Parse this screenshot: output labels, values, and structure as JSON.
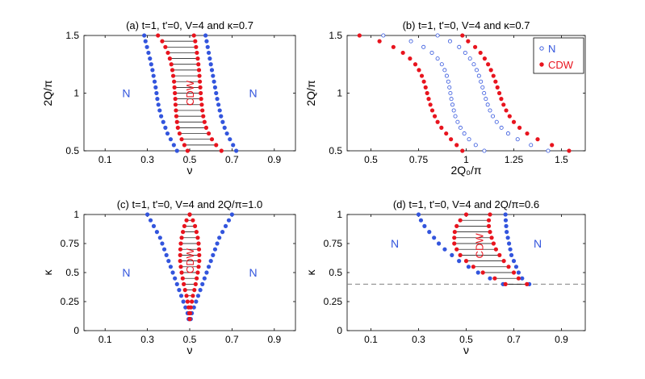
{
  "colors": {
    "n": "#3355dd",
    "cdw": "#e8141e",
    "tie": "#000000",
    "dash": "#808080"
  },
  "chart_data": [
    {
      "id": "a",
      "type": "scatter",
      "title": "(a) t=1, t'=0, V=4 and κ=0.7",
      "xlabel": "ν",
      "ylabel": "2Q/π",
      "xlim": [
        0,
        1
      ],
      "ylim": [
        0.5,
        1.5
      ],
      "xticks": [
        0.1,
        0.3,
        0.5,
        0.7,
        0.9
      ],
      "xtick_labels": [
        "0.1",
        "0.3",
        "0.5",
        "0.7",
        "0.9"
      ],
      "yticks": [
        0.5,
        1,
        1.5
      ],
      "ytick_labels": [
        "0.5",
        "1",
        "1.5"
      ],
      "annotations": [
        {
          "text": "N",
          "x": 0.2,
          "y": 1.0,
          "color": "n",
          "rotate": 0
        },
        {
          "text": "N",
          "x": 0.8,
          "y": 1.0,
          "color": "n",
          "rotate": 0
        },
        {
          "text": "CDW",
          "x": 0.5,
          "y": 1.0,
          "color": "cdw",
          "rotate": -90
        }
      ],
      "pairs": {
        "y": [
          0.5,
          0.55,
          0.6,
          0.65,
          0.7,
          0.75,
          0.8,
          0.85,
          0.9,
          0.95,
          1.0,
          1.05,
          1.1,
          1.15,
          1.2,
          1.25,
          1.3,
          1.35,
          1.4,
          1.45,
          1.5
        ],
        "n_left": [
          0.44,
          0.425,
          0.41,
          0.395,
          0.385,
          0.375,
          0.365,
          0.358,
          0.352,
          0.347,
          0.343,
          0.339,
          0.334,
          0.329,
          0.324,
          0.318,
          0.312,
          0.305,
          0.298,
          0.291,
          0.285
        ],
        "cdw_left": [
          0.49,
          0.475,
          0.462,
          0.452,
          0.444,
          0.44,
          0.437,
          0.435,
          0.433,
          0.432,
          0.43,
          0.428,
          0.426,
          0.422,
          0.418,
          0.413,
          0.406,
          0.397,
          0.385,
          0.37,
          0.35
        ],
        "cdw_right": [
          0.65,
          0.625,
          0.605,
          0.59,
          0.578,
          0.57,
          0.564,
          0.56,
          0.557,
          0.554,
          0.552,
          0.55,
          0.548,
          0.546,
          0.544,
          0.541,
          0.538,
          0.534,
          0.53,
          0.526,
          0.52
        ],
        "n_right": [
          0.72,
          0.705,
          0.69,
          0.676,
          0.665,
          0.656,
          0.648,
          0.642,
          0.636,
          0.63,
          0.625,
          0.62,
          0.615,
          0.61,
          0.605,
          0.6,
          0.595,
          0.59,
          0.585,
          0.58,
          0.575
        ]
      }
    },
    {
      "id": "b",
      "type": "scatter",
      "title": "(b) t=1, t'=0, V=4 and κ=0.7",
      "xlabel": "2Q₀/π",
      "ylabel": "2Q/π",
      "xlim": [
        0.375,
        1.625
      ],
      "ylim": [
        0.5,
        1.5
      ],
      "xticks": [
        0.5,
        0.75,
        1,
        1.25,
        1.5
      ],
      "xtick_labels": [
        "0.5",
        "0.75",
        "1",
        "1.25",
        "1.5"
      ],
      "yticks": [
        0.5,
        1,
        1.5
      ],
      "ytick_labels": [
        "0.5",
        "1",
        "1.5"
      ],
      "legend": [
        {
          "label": "N",
          "marker": "open",
          "color": "n"
        },
        {
          "label": "CDW",
          "marker": "filled",
          "color": "cdw"
        }
      ],
      "legend_position": "top-right",
      "series": [
        {
          "name": "CDW (left)",
          "style": "filled",
          "color": "cdw",
          "y": [
            0.5,
            0.55,
            0.6,
            0.65,
            0.7,
            0.75,
            0.8,
            0.85,
            0.9,
            0.95,
            1.0,
            1.05,
            1.1,
            1.15,
            1.2,
            1.25,
            1.3,
            1.35,
            1.4,
            1.45,
            1.5
          ],
          "x": [
            0.98,
            0.95,
            0.92,
            0.895,
            0.87,
            0.85,
            0.835,
            0.822,
            0.812,
            0.803,
            0.795,
            0.787,
            0.778,
            0.767,
            0.752,
            0.733,
            0.705,
            0.668,
            0.618,
            0.545,
            0.44
          ]
        },
        {
          "name": "N (left)",
          "style": "open",
          "color": "n",
          "y": [
            0.5,
            0.55,
            0.6,
            0.65,
            0.7,
            0.75,
            0.8,
            0.85,
            0.9,
            0.95,
            1.0,
            1.05,
            1.1,
            1.15,
            1.2,
            1.25,
            1.3,
            1.35,
            1.4,
            1.45,
            1.5
          ],
          "x": [
            1.095,
            1.05,
            1.015,
            0.99,
            0.97,
            0.955,
            0.943,
            0.935,
            0.928,
            0.922,
            0.917,
            0.912,
            0.906,
            0.898,
            0.887,
            0.872,
            0.85,
            0.82,
            0.776,
            0.71,
            0.565
          ]
        },
        {
          "name": "N (right)",
          "style": "open",
          "color": "n",
          "y": [
            0.5,
            0.55,
            0.6,
            0.65,
            0.7,
            0.75,
            0.8,
            0.85,
            0.9,
            0.95,
            1.0,
            1.05,
            1.1,
            1.15,
            1.2,
            1.25,
            1.3,
            1.35,
            1.4,
            1.45,
            1.5
          ],
          "x": [
            1.43,
            1.34,
            1.27,
            1.22,
            1.185,
            1.16,
            1.14,
            1.125,
            1.113,
            1.103,
            1.094,
            1.086,
            1.077,
            1.067,
            1.055,
            1.04,
            1.02,
            0.995,
            0.963,
            0.915,
            0.85
          ]
        },
        {
          "name": "CDW (right)",
          "style": "filled",
          "color": "cdw",
          "y": [
            0.5,
            0.55,
            0.6,
            0.65,
            0.7,
            0.75,
            0.8,
            0.85,
            0.9,
            0.95,
            1.0,
            1.05,
            1.1,
            1.15,
            1.2,
            1.25,
            1.3,
            1.35,
            1.4,
            1.45,
            1.5
          ],
          "x": [
            1.54,
            1.45,
            1.375,
            1.32,
            1.28,
            1.25,
            1.228,
            1.21,
            1.196,
            1.184,
            1.174,
            1.164,
            1.154,
            1.143,
            1.13,
            1.115,
            1.097,
            1.075,
            1.047,
            1.01,
            0.98
          ]
        }
      ]
    },
    {
      "id": "c",
      "type": "scatter",
      "title": "(c) t=1, t'=0, V=4 and 2Q/π=1.0",
      "xlabel": "ν",
      "ylabel": "κ",
      "xlim": [
        0,
        1
      ],
      "ylim": [
        0,
        1
      ],
      "xticks": [
        0.1,
        0.3,
        0.5,
        0.7,
        0.9
      ],
      "xtick_labels": [
        "0.1",
        "0.3",
        "0.5",
        "0.7",
        "0.9"
      ],
      "yticks": [
        0,
        0.25,
        0.5,
        0.75,
        1
      ],
      "ytick_labels": [
        "0",
        "0.25",
        "0.5",
        "0.75",
        "1"
      ],
      "annotations": [
        {
          "text": "N",
          "x": 0.2,
          "y": 0.5,
          "color": "n",
          "rotate": 0
        },
        {
          "text": "N",
          "x": 0.8,
          "y": 0.5,
          "color": "n",
          "rotate": 0
        },
        {
          "text": "CDW",
          "x": 0.5,
          "y": 0.6,
          "color": "cdw",
          "rotate": -90
        }
      ],
      "pairs": {
        "y": [
          0.1,
          0.15,
          0.2,
          0.25,
          0.3,
          0.35,
          0.4,
          0.45,
          0.5,
          0.55,
          0.6,
          0.65,
          0.7,
          0.75,
          0.8,
          0.85,
          0.9,
          0.95,
          1.0
        ],
        "n_left": [
          0.495,
          0.49,
          0.48,
          0.47,
          0.46,
          0.45,
          0.44,
          0.43,
          0.42,
          0.41,
          0.4,
          0.39,
          0.38,
          0.37,
          0.36,
          0.345,
          0.33,
          0.315,
          0.3
        ],
        "cdw_left": [
          0.5,
          0.498,
          0.495,
          0.49,
          0.485,
          0.478,
          0.472,
          0.467,
          0.462,
          0.458,
          0.455,
          0.455,
          0.456,
          0.458,
          0.462,
          0.468,
          0.475,
          0.485,
          0.5
        ],
        "cdw_right": [
          0.5,
          0.502,
          0.505,
          0.51,
          0.515,
          0.522,
          0.528,
          0.533,
          0.538,
          0.542,
          0.545,
          0.545,
          0.544,
          0.542,
          0.538,
          0.532,
          0.525,
          0.515,
          0.5
        ],
        "n_right": [
          0.505,
          0.51,
          0.52,
          0.53,
          0.54,
          0.55,
          0.56,
          0.57,
          0.58,
          0.59,
          0.6,
          0.61,
          0.62,
          0.63,
          0.64,
          0.655,
          0.67,
          0.685,
          0.7
        ]
      }
    },
    {
      "id": "d",
      "type": "scatter",
      "title": "(d) t=1, t'=0, V=4 and 2Q/π=0.6",
      "xlabel": "ν",
      "ylabel": "κ",
      "xlim": [
        0,
        1
      ],
      "ylim": [
        0,
        1
      ],
      "xticks": [
        0.1,
        0.3,
        0.5,
        0.7,
        0.9
      ],
      "xtick_labels": [
        "0.1",
        "0.3",
        "0.5",
        "0.7",
        "0.9"
      ],
      "yticks": [
        0,
        0.25,
        0.5,
        0.75,
        1
      ],
      "ytick_labels": [
        "0",
        "0.25",
        "0.5",
        "0.75",
        "1"
      ],
      "hline": 0.4,
      "annotations": [
        {
          "text": "N",
          "x": 0.2,
          "y": 0.75,
          "color": "n",
          "rotate": 0
        },
        {
          "text": "N",
          "x": 0.8,
          "y": 0.75,
          "color": "n",
          "rotate": 0
        },
        {
          "text": "CDW",
          "x": 0.555,
          "y": 0.73,
          "color": "cdw",
          "rotate": -90
        }
      ],
      "pairs": {
        "y": [
          0.4,
          0.45,
          0.5,
          0.55,
          0.6,
          0.65,
          0.7,
          0.75,
          0.8,
          0.85,
          0.9,
          0.95,
          1.0
        ],
        "n_left": [
          0.655,
          0.6,
          0.55,
          0.51,
          0.47,
          0.44,
          0.41,
          0.385,
          0.365,
          0.345,
          0.325,
          0.31,
          0.3
        ],
        "cdw_left": [
          0.665,
          0.62,
          0.57,
          0.53,
          0.5,
          0.475,
          0.46,
          0.45,
          0.45,
          0.452,
          0.46,
          0.475,
          0.5
        ],
        "cdw_right": [
          0.755,
          0.72,
          0.7,
          0.678,
          0.658,
          0.64,
          0.625,
          0.615,
          0.607,
          0.6,
          0.595,
          0.595,
          0.6
        ],
        "n_right": [
          0.765,
          0.735,
          0.72,
          0.71,
          0.7,
          0.69,
          0.685,
          0.68,
          0.675,
          0.67,
          0.668,
          0.666,
          0.665
        ]
      }
    }
  ]
}
